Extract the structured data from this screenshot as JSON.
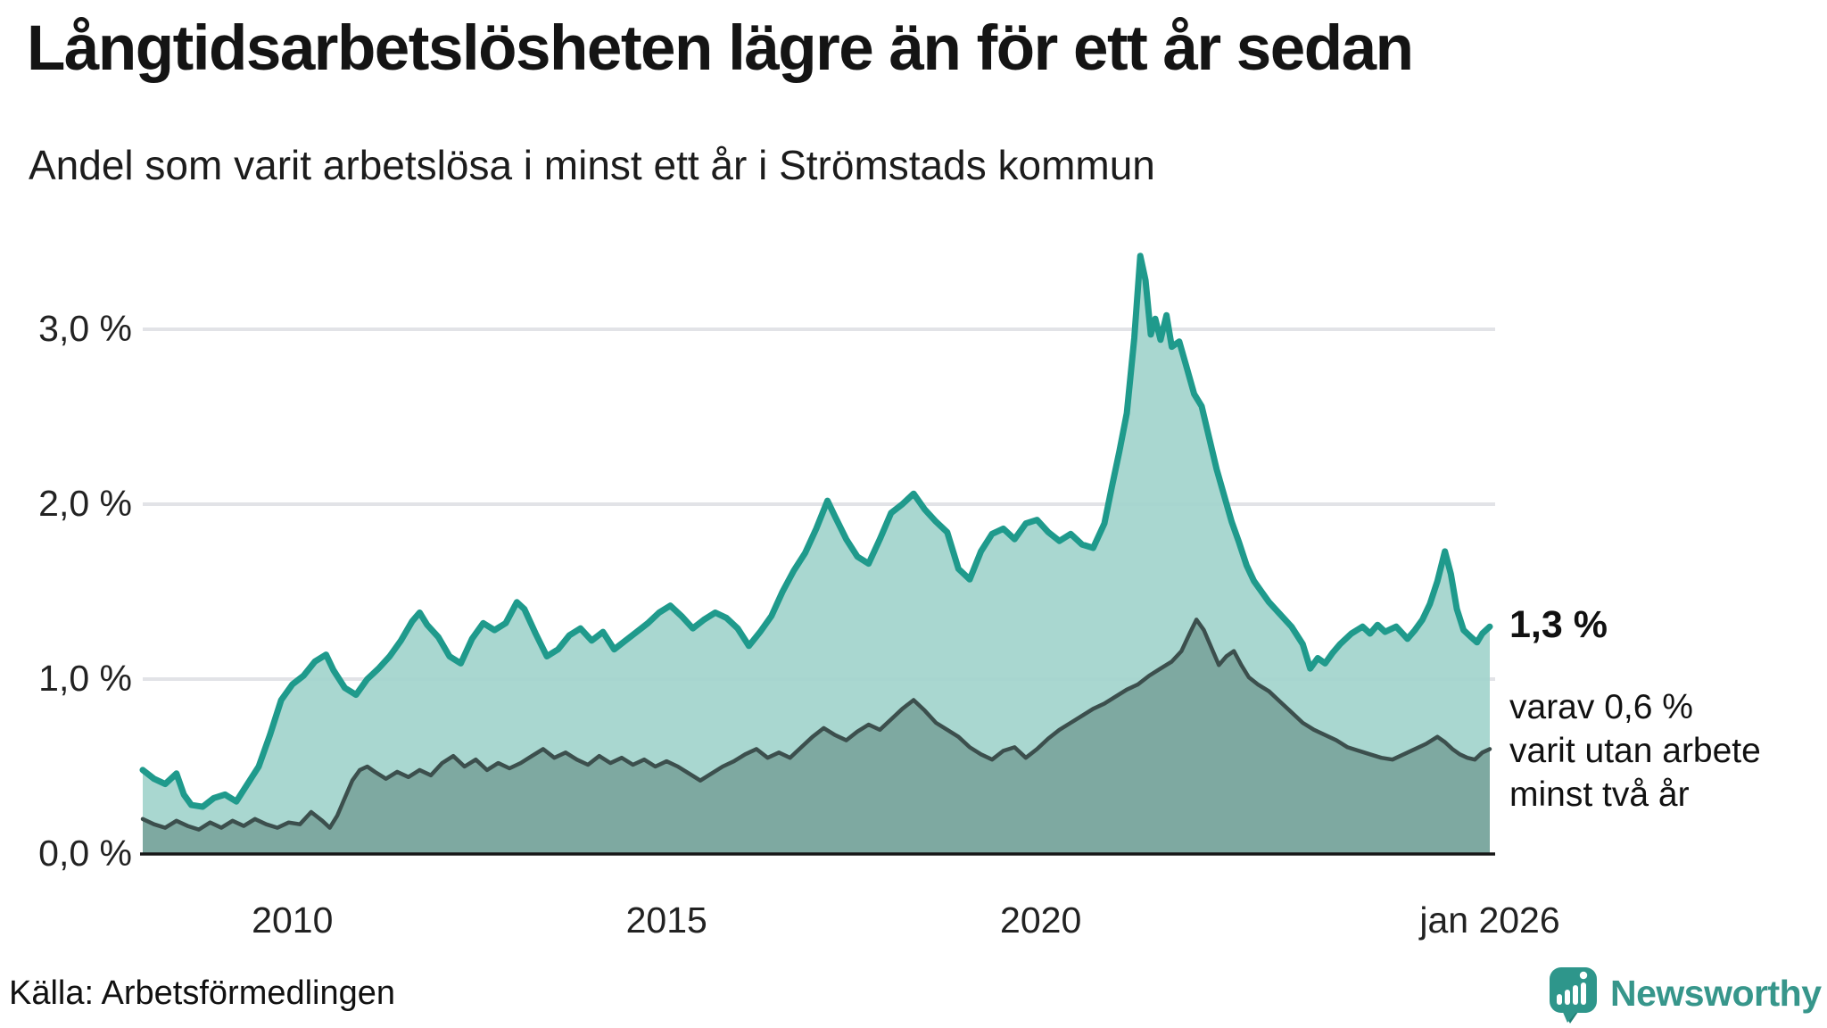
{
  "header": {
    "title": "Långtidsarbetslösheten lägre än för ett år sedan",
    "subtitle": "Andel som varit arbetslösa i minst ett år i Strömstads kommun"
  },
  "annotations": {
    "latest_total": "1,3 %",
    "secondary_line1": "varav 0,6 %",
    "secondary_line2": "varit utan arbete",
    "secondary_line3": "minst två år"
  },
  "footer": {
    "source": "Källa: Arbetsförmedlingen",
    "brand": "Newsworthy"
  },
  "colors": {
    "teal_line": "#1f9a8c",
    "teal_fill": "#a2d4cc",
    "dark_line": "#3c4f4d",
    "dark_fill": "#7ea9a1",
    "gridline": "#e2e3e7",
    "baseline": "#161616",
    "brand_teal": "#37968b",
    "bubble_teal": "#2e968b",
    "bubble_shadow": "#1f7f74"
  },
  "chart_data": {
    "type": "area",
    "title": "Långtidsarbetslösheten lägre än för ett år sedan",
    "subtitle": "Andel som varit arbetslösa i minst ett år i Strömstads kommun",
    "unit": "%",
    "grid": true,
    "legend": "none",
    "x_axis": {
      "range": [
        2008,
        2026
      ],
      "ticks": [
        {
          "label": "2010",
          "value": 2010
        },
        {
          "label": "2015",
          "value": 2015
        },
        {
          "label": "2020",
          "value": 2020
        },
        {
          "label": "jan 2026",
          "value": 2026
        }
      ]
    },
    "y_axis": {
      "range": [
        0,
        3.5
      ],
      "gridline_values": [
        1,
        2,
        3
      ],
      "ticks": [
        {
          "label": "0,0 %",
          "value": 0
        },
        {
          "label": "1,0 %",
          "value": 1
        },
        {
          "label": "2,0 %",
          "value": 2
        },
        {
          "label": "3,0 %",
          "value": 3
        }
      ]
    },
    "series": [
      {
        "name": "minst ett år",
        "latest_label": "1,3 %",
        "line_color": "#1f9a8c",
        "fill_color": "#a2d4cc",
        "points": [
          [
            2008.0,
            0.48
          ],
          [
            2008.15,
            0.43
          ],
          [
            2008.3,
            0.4
          ],
          [
            2008.45,
            0.46
          ],
          [
            2008.55,
            0.34
          ],
          [
            2008.65,
            0.28
          ],
          [
            2008.8,
            0.27
          ],
          [
            2008.95,
            0.32
          ],
          [
            2009.1,
            0.34
          ],
          [
            2009.25,
            0.3
          ],
          [
            2009.4,
            0.4
          ],
          [
            2009.55,
            0.5
          ],
          [
            2009.7,
            0.68
          ],
          [
            2009.85,
            0.88
          ],
          [
            2010.0,
            0.97
          ],
          [
            2010.15,
            1.02
          ],
          [
            2010.3,
            1.1
          ],
          [
            2010.45,
            1.14
          ],
          [
            2010.55,
            1.05
          ],
          [
            2010.7,
            0.95
          ],
          [
            2010.85,
            0.91
          ],
          [
            2011.0,
            1.0
          ],
          [
            2011.15,
            1.06
          ],
          [
            2011.3,
            1.13
          ],
          [
            2011.45,
            1.22
          ],
          [
            2011.6,
            1.33
          ],
          [
            2011.7,
            1.38
          ],
          [
            2011.8,
            1.31
          ],
          [
            2011.95,
            1.24
          ],
          [
            2012.1,
            1.13
          ],
          [
            2012.25,
            1.09
          ],
          [
            2012.4,
            1.23
          ],
          [
            2012.55,
            1.32
          ],
          [
            2012.7,
            1.28
          ],
          [
            2012.85,
            1.32
          ],
          [
            2013.0,
            1.44
          ],
          [
            2013.1,
            1.4
          ],
          [
            2013.25,
            1.26
          ],
          [
            2013.4,
            1.13
          ],
          [
            2013.55,
            1.17
          ],
          [
            2013.7,
            1.25
          ],
          [
            2013.85,
            1.29
          ],
          [
            2014.0,
            1.22
          ],
          [
            2014.15,
            1.27
          ],
          [
            2014.3,
            1.17
          ],
          [
            2014.45,
            1.22
          ],
          [
            2014.6,
            1.27
          ],
          [
            2014.75,
            1.32
          ],
          [
            2014.9,
            1.38
          ],
          [
            2015.05,
            1.42
          ],
          [
            2015.2,
            1.36
          ],
          [
            2015.35,
            1.29
          ],
          [
            2015.5,
            1.34
          ],
          [
            2015.65,
            1.38
          ],
          [
            2015.8,
            1.35
          ],
          [
            2015.95,
            1.29
          ],
          [
            2016.1,
            1.19
          ],
          [
            2016.25,
            1.27
          ],
          [
            2016.4,
            1.36
          ],
          [
            2016.55,
            1.5
          ],
          [
            2016.7,
            1.62
          ],
          [
            2016.85,
            1.72
          ],
          [
            2017.0,
            1.86
          ],
          [
            2017.15,
            2.02
          ],
          [
            2017.25,
            1.93
          ],
          [
            2017.4,
            1.8
          ],
          [
            2017.55,
            1.7
          ],
          [
            2017.7,
            1.66
          ],
          [
            2017.85,
            1.8
          ],
          [
            2018.0,
            1.95
          ],
          [
            2018.15,
            2.0
          ],
          [
            2018.3,
            2.06
          ],
          [
            2018.45,
            1.97
          ],
          [
            2018.6,
            1.9
          ],
          [
            2018.75,
            1.84
          ],
          [
            2018.9,
            1.63
          ],
          [
            2019.05,
            1.57
          ],
          [
            2019.2,
            1.73
          ],
          [
            2019.35,
            1.83
          ],
          [
            2019.5,
            1.86
          ],
          [
            2019.65,
            1.8
          ],
          [
            2019.8,
            1.89
          ],
          [
            2019.95,
            1.91
          ],
          [
            2020.1,
            1.84
          ],
          [
            2020.25,
            1.79
          ],
          [
            2020.4,
            1.83
          ],
          [
            2020.55,
            1.77
          ],
          [
            2020.7,
            1.75
          ],
          [
            2020.85,
            1.89
          ],
          [
            2020.95,
            2.1
          ],
          [
            2021.05,
            2.3
          ],
          [
            2021.15,
            2.52
          ],
          [
            2021.25,
            2.95
          ],
          [
            2021.33,
            3.42
          ],
          [
            2021.4,
            3.28
          ],
          [
            2021.47,
            2.97
          ],
          [
            2021.53,
            3.06
          ],
          [
            2021.6,
            2.94
          ],
          [
            2021.68,
            3.08
          ],
          [
            2021.75,
            2.9
          ],
          [
            2021.85,
            2.93
          ],
          [
            2021.95,
            2.78
          ],
          [
            2022.05,
            2.63
          ],
          [
            2022.15,
            2.56
          ],
          [
            2022.25,
            2.38
          ],
          [
            2022.35,
            2.2
          ],
          [
            2022.45,
            2.05
          ],
          [
            2022.55,
            1.9
          ],
          [
            2022.65,
            1.78
          ],
          [
            2022.75,
            1.65
          ],
          [
            2022.85,
            1.56
          ],
          [
            2022.95,
            1.5
          ],
          [
            2023.05,
            1.44
          ],
          [
            2023.2,
            1.37
          ],
          [
            2023.35,
            1.3
          ],
          [
            2023.5,
            1.2
          ],
          [
            2023.6,
            1.06
          ],
          [
            2023.7,
            1.12
          ],
          [
            2023.8,
            1.09
          ],
          [
            2023.9,
            1.15
          ],
          [
            2024.0,
            1.2
          ],
          [
            2024.15,
            1.26
          ],
          [
            2024.3,
            1.3
          ],
          [
            2024.4,
            1.26
          ],
          [
            2024.5,
            1.31
          ],
          [
            2024.6,
            1.27
          ],
          [
            2024.75,
            1.3
          ],
          [
            2024.9,
            1.23
          ],
          [
            2025.0,
            1.28
          ],
          [
            2025.1,
            1.34
          ],
          [
            2025.2,
            1.43
          ],
          [
            2025.3,
            1.56
          ],
          [
            2025.4,
            1.73
          ],
          [
            2025.48,
            1.6
          ],
          [
            2025.56,
            1.4
          ],
          [
            2025.65,
            1.28
          ],
          [
            2025.75,
            1.24
          ],
          [
            2025.83,
            1.21
          ],
          [
            2025.9,
            1.26
          ],
          [
            2026.0,
            1.3
          ]
        ]
      },
      {
        "name": "minst två år",
        "latest_label": "0,6 %",
        "line_color": "#3c4f4d",
        "fill_color": "#7ea9a1",
        "points": [
          [
            2008.0,
            0.2
          ],
          [
            2008.15,
            0.17
          ],
          [
            2008.3,
            0.15
          ],
          [
            2008.45,
            0.19
          ],
          [
            2008.6,
            0.16
          ],
          [
            2008.75,
            0.14
          ],
          [
            2008.9,
            0.18
          ],
          [
            2009.05,
            0.15
          ],
          [
            2009.2,
            0.19
          ],
          [
            2009.35,
            0.16
          ],
          [
            2009.5,
            0.2
          ],
          [
            2009.65,
            0.17
          ],
          [
            2009.8,
            0.15
          ],
          [
            2009.95,
            0.18
          ],
          [
            2010.1,
            0.17
          ],
          [
            2010.25,
            0.24
          ],
          [
            2010.4,
            0.19
          ],
          [
            2010.5,
            0.15
          ],
          [
            2010.6,
            0.22
          ],
          [
            2010.7,
            0.32
          ],
          [
            2010.8,
            0.42
          ],
          [
            2010.9,
            0.48
          ],
          [
            2011.0,
            0.5
          ],
          [
            2011.1,
            0.47
          ],
          [
            2011.25,
            0.43
          ],
          [
            2011.4,
            0.47
          ],
          [
            2011.55,
            0.44
          ],
          [
            2011.7,
            0.48
          ],
          [
            2011.85,
            0.45
          ],
          [
            2012.0,
            0.52
          ],
          [
            2012.15,
            0.56
          ],
          [
            2012.3,
            0.5
          ],
          [
            2012.45,
            0.54
          ],
          [
            2012.6,
            0.48
          ],
          [
            2012.75,
            0.52
          ],
          [
            2012.9,
            0.49
          ],
          [
            2013.05,
            0.52
          ],
          [
            2013.2,
            0.56
          ],
          [
            2013.35,
            0.6
          ],
          [
            2013.5,
            0.55
          ],
          [
            2013.65,
            0.58
          ],
          [
            2013.8,
            0.54
          ],
          [
            2013.95,
            0.51
          ],
          [
            2014.1,
            0.56
          ],
          [
            2014.25,
            0.52
          ],
          [
            2014.4,
            0.55
          ],
          [
            2014.55,
            0.51
          ],
          [
            2014.7,
            0.54
          ],
          [
            2014.85,
            0.5
          ],
          [
            2015.0,
            0.53
          ],
          [
            2015.15,
            0.5
          ],
          [
            2015.3,
            0.46
          ],
          [
            2015.45,
            0.42
          ],
          [
            2015.6,
            0.46
          ],
          [
            2015.75,
            0.5
          ],
          [
            2015.9,
            0.53
          ],
          [
            2016.05,
            0.57
          ],
          [
            2016.2,
            0.6
          ],
          [
            2016.35,
            0.55
          ],
          [
            2016.5,
            0.58
          ],
          [
            2016.65,
            0.55
          ],
          [
            2016.8,
            0.61
          ],
          [
            2016.95,
            0.67
          ],
          [
            2017.1,
            0.72
          ],
          [
            2017.25,
            0.68
          ],
          [
            2017.4,
            0.65
          ],
          [
            2017.55,
            0.7
          ],
          [
            2017.7,
            0.74
          ],
          [
            2017.85,
            0.71
          ],
          [
            2018.0,
            0.77
          ],
          [
            2018.15,
            0.83
          ],
          [
            2018.3,
            0.88
          ],
          [
            2018.45,
            0.82
          ],
          [
            2018.6,
            0.75
          ],
          [
            2018.75,
            0.71
          ],
          [
            2018.9,
            0.67
          ],
          [
            2019.05,
            0.61
          ],
          [
            2019.2,
            0.57
          ],
          [
            2019.35,
            0.54
          ],
          [
            2019.5,
            0.59
          ],
          [
            2019.65,
            0.61
          ],
          [
            2019.8,
            0.55
          ],
          [
            2019.95,
            0.6
          ],
          [
            2020.1,
            0.66
          ],
          [
            2020.25,
            0.71
          ],
          [
            2020.4,
            0.75
          ],
          [
            2020.55,
            0.79
          ],
          [
            2020.7,
            0.83
          ],
          [
            2020.85,
            0.86
          ],
          [
            2021.0,
            0.9
          ],
          [
            2021.15,
            0.94
          ],
          [
            2021.3,
            0.97
          ],
          [
            2021.45,
            1.02
          ],
          [
            2021.6,
            1.06
          ],
          [
            2021.75,
            1.1
          ],
          [
            2021.88,
            1.16
          ],
          [
            2022.0,
            1.27
          ],
          [
            2022.08,
            1.34
          ],
          [
            2022.18,
            1.28
          ],
          [
            2022.28,
            1.18
          ],
          [
            2022.38,
            1.08
          ],
          [
            2022.48,
            1.13
          ],
          [
            2022.58,
            1.16
          ],
          [
            2022.68,
            1.08
          ],
          [
            2022.78,
            1.01
          ],
          [
            2022.9,
            0.97
          ],
          [
            2023.05,
            0.93
          ],
          [
            2023.2,
            0.87
          ],
          [
            2023.35,
            0.81
          ],
          [
            2023.5,
            0.75
          ],
          [
            2023.65,
            0.71
          ],
          [
            2023.8,
            0.68
          ],
          [
            2023.95,
            0.65
          ],
          [
            2024.1,
            0.61
          ],
          [
            2024.25,
            0.59
          ],
          [
            2024.4,
            0.57
          ],
          [
            2024.55,
            0.55
          ],
          [
            2024.7,
            0.54
          ],
          [
            2024.85,
            0.57
          ],
          [
            2025.0,
            0.6
          ],
          [
            2025.15,
            0.63
          ],
          [
            2025.3,
            0.67
          ],
          [
            2025.4,
            0.64
          ],
          [
            2025.5,
            0.6
          ],
          [
            2025.6,
            0.57
          ],
          [
            2025.7,
            0.55
          ],
          [
            2025.8,
            0.54
          ],
          [
            2025.9,
            0.58
          ],
          [
            2026.0,
            0.6
          ]
        ]
      }
    ]
  }
}
